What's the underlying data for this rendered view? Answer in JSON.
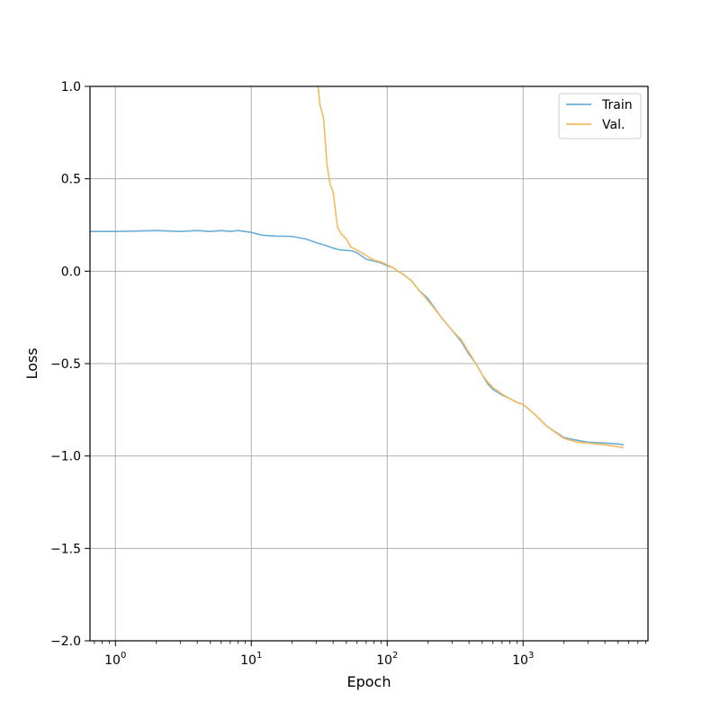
{
  "chart_data": {
    "type": "line",
    "xscale": "log",
    "xlabel": "Epoch",
    "ylabel": "Loss",
    "xlim": [
      0.65,
      8300
    ],
    "ylim": [
      -2.0,
      1.0
    ],
    "x_ticks": [
      {
        "value": 1,
        "base": "10",
        "exp": "0"
      },
      {
        "value": 10,
        "base": "10",
        "exp": "1"
      },
      {
        "value": 100,
        "base": "10",
        "exp": "2"
      },
      {
        "value": 1000,
        "base": "10",
        "exp": "3"
      }
    ],
    "y_ticks": [
      {
        "value": 1.0,
        "label": "1.0"
      },
      {
        "value": 0.5,
        "label": "0.5"
      },
      {
        "value": 0.0,
        "label": "0.0"
      },
      {
        "value": -0.5,
        "label": "−0.5"
      },
      {
        "value": -1.0,
        "label": "−1.0"
      },
      {
        "value": -1.5,
        "label": "−1.5"
      },
      {
        "value": -2.0,
        "label": "−2.0"
      }
    ],
    "grid": true,
    "legend_position": "top-right",
    "series": [
      {
        "name": "Train",
        "color": "#6aaed6",
        "x": [
          0.65,
          1,
          2,
          3,
          4,
          5,
          6,
          7,
          8,
          9,
          10,
          12,
          15,
          20,
          25,
          30,
          35,
          40,
          45,
          50,
          55,
          60,
          70,
          80,
          90,
          100,
          110,
          120,
          130,
          150,
          170,
          200,
          250,
          300,
          350,
          400,
          450,
          500,
          550,
          600,
          700,
          800,
          900,
          1000,
          1200,
          1500,
          2000,
          2500,
          3000,
          4000,
          5000,
          5500
        ],
        "y": [
          0.215,
          0.215,
          0.22,
          0.215,
          0.22,
          0.215,
          0.22,
          0.215,
          0.22,
          0.215,
          0.21,
          0.195,
          0.19,
          0.188,
          0.175,
          0.155,
          0.14,
          0.125,
          0.115,
          0.113,
          0.11,
          0.1,
          0.065,
          0.055,
          0.045,
          0.03,
          0.02,
          0.0,
          -0.015,
          -0.05,
          -0.1,
          -0.15,
          -0.25,
          -0.32,
          -0.38,
          -0.45,
          -0.5,
          -0.56,
          -0.61,
          -0.64,
          -0.67,
          -0.69,
          -0.71,
          -0.72,
          -0.77,
          -0.84,
          -0.9,
          -0.915,
          -0.925,
          -0.93,
          -0.935,
          -0.94
        ]
      },
      {
        "name": "Val.",
        "color": "#f4bb60",
        "x": [
          31,
          32,
          34,
          36,
          38,
          40,
          43,
          46,
          50,
          54,
          58,
          65,
          70,
          80,
          90,
          100,
          110,
          120,
          130,
          150,
          170,
          200,
          250,
          300,
          350,
          400,
          450,
          500,
          550,
          600,
          700,
          800,
          900,
          1000,
          1200,
          1500,
          2000,
          2500,
          3000,
          4000,
          5000,
          5500
        ],
        "y": [
          1.0,
          0.9,
          0.83,
          0.58,
          0.47,
          0.43,
          0.24,
          0.2,
          0.175,
          0.13,
          0.12,
          0.1,
          0.085,
          0.06,
          0.05,
          0.035,
          0.02,
          0.0,
          -0.015,
          -0.05,
          -0.1,
          -0.16,
          -0.25,
          -0.32,
          -0.37,
          -0.44,
          -0.5,
          -0.56,
          -0.6,
          -0.63,
          -0.665,
          -0.69,
          -0.71,
          -0.72,
          -0.77,
          -0.84,
          -0.905,
          -0.925,
          -0.93,
          -0.94,
          -0.95,
          -0.955
        ]
      }
    ]
  }
}
